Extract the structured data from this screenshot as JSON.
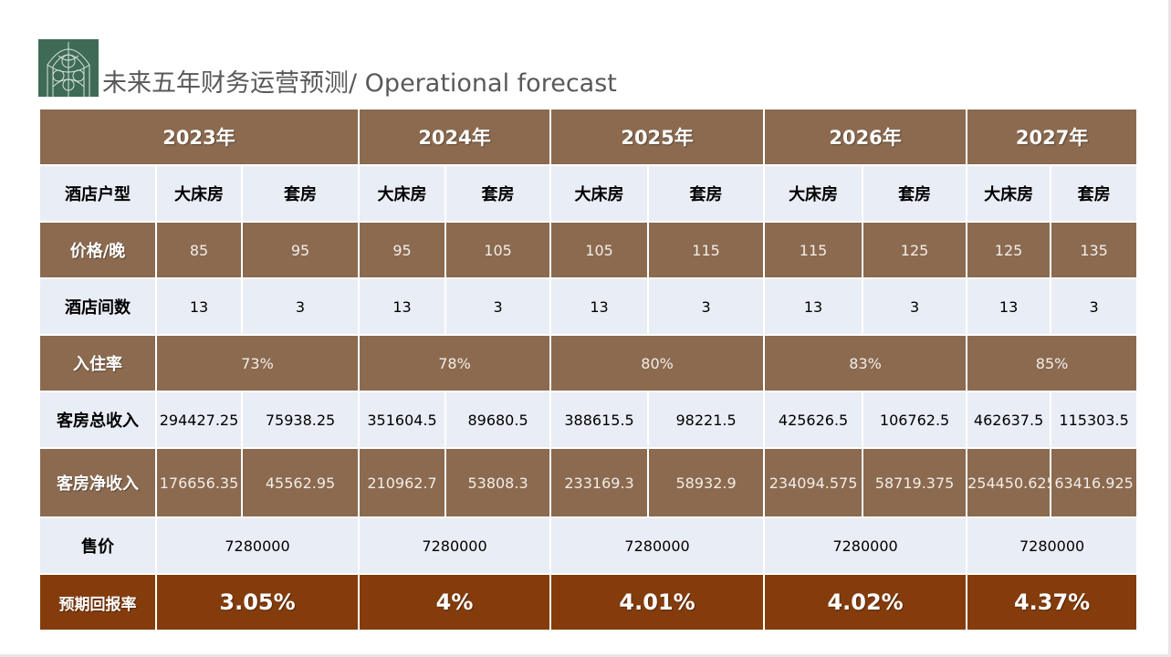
{
  "title": "未来五年财务运营预测/ Operational forecast",
  "years": [
    "2023年",
    "2024年",
    "2025年",
    "2026年",
    "2027年"
  ],
  "row_labels": {
    "room_type": "酒店户型",
    "price": "价格/晚",
    "rooms": "酒店间数",
    "occupancy": "入住率",
    "gross_revenue": "客房总收入",
    "net_revenue": "客房净收入",
    "sale_price": "售价",
    "expected_return": "预期回报率"
  },
  "room_types": [
    "大床房",
    "套房"
  ],
  "price": [
    [
      "85",
      "95"
    ],
    [
      "95",
      "105"
    ],
    [
      "105",
      "115"
    ],
    [
      "115",
      "125"
    ],
    [
      "125",
      "135"
    ]
  ],
  "rooms": [
    [
      "13",
      "3"
    ],
    [
      "13",
      "3"
    ],
    [
      "13",
      "3"
    ],
    [
      "13",
      "3"
    ],
    [
      "13",
      "3"
    ]
  ],
  "occupancy": [
    "73%",
    "78%",
    "80%",
    "83%",
    "85%"
  ],
  "gross_revenue": [
    [
      "294427.25",
      "75938.25"
    ],
    [
      "351604.5",
      "89680.5"
    ],
    [
      "388615.5",
      "98221.5"
    ],
    [
      "425626.5",
      "106762.5"
    ],
    [
      "462637.5",
      "115303.5"
    ]
  ],
  "net_revenue": [
    [
      "176656.35",
      "45562.95"
    ],
    [
      "210962.7",
      "53808.3"
    ],
    [
      "233169.3",
      "58932.9"
    ],
    [
      "234094.575",
      "58719.375"
    ],
    [
      "254450.625",
      "63416.925"
    ]
  ],
  "sale_price": [
    "7280000",
    "7280000",
    "7280000",
    "7280000",
    "7280000"
  ],
  "expected_return": [
    "3.05%",
    "4%",
    "4.01%",
    "4.02%",
    "4.37%"
  ],
  "colors": {
    "brown": "#8b6a4f",
    "light_row": "#e9edf5",
    "dark_brown": "#843c0c",
    "logo_green": "#3f6b56",
    "title_gray": "#595959"
  },
  "icons": {
    "logo": "ornate-window-logo-icon"
  }
}
